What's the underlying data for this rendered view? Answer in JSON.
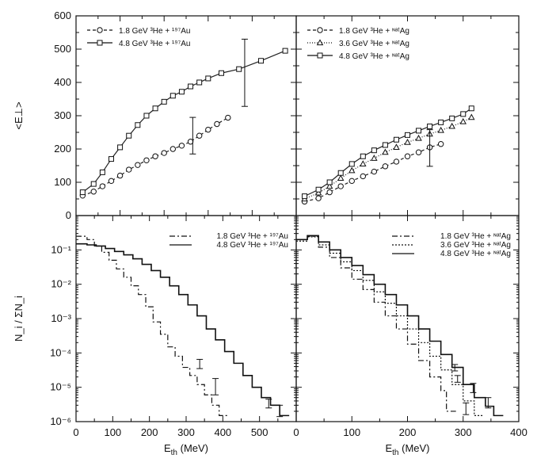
{
  "chart_data": [
    {
      "panel": "top-left",
      "type": "line",
      "ylabel": "<E⊥>",
      "xlim": [
        0,
        500
      ],
      "ylim": [
        0,
        600
      ],
      "yticks": [
        "0",
        "100",
        "200",
        "300",
        "400",
        "500",
        "600"
      ],
      "legend_position": "top-left",
      "series": [
        {
          "name": "1.8 GeV ³He + ¹⁹⁷Au",
          "marker": "circle",
          "dash": "4 3",
          "color": "#222222",
          "x": [
            15,
            40,
            60,
            80,
            100,
            120,
            140,
            160,
            180,
            200,
            220,
            240,
            260,
            280,
            300,
            320,
            345
          ],
          "y": [
            60,
            72,
            88,
            104,
            120,
            138,
            152,
            166,
            178,
            188,
            200,
            210,
            222,
            240,
            258,
            275,
            294
          ]
        },
        {
          "name": "4.8 GeV ³He + ¹⁹⁷Au",
          "marker": "square",
          "dash": "",
          "color": "#222222",
          "x": [
            15,
            40,
            60,
            80,
            100,
            120,
            140,
            160,
            180,
            200,
            220,
            240,
            260,
            280,
            300,
            330,
            370,
            420,
            475
          ],
          "y": [
            70,
            95,
            130,
            170,
            205,
            240,
            272,
            300,
            322,
            342,
            360,
            372,
            388,
            400,
            412,
            428,
            440,
            465,
            495
          ]
        }
      ],
      "errorbars": [
        {
          "x": 265,
          "y": 238,
          "low": 185,
          "high": 295
        },
        {
          "x": 383,
          "y": 430,
          "low": 328,
          "high": 530
        }
      ]
    },
    {
      "panel": "top-right",
      "type": "line",
      "xlim": [
        0,
        400
      ],
      "ylim": [
        0,
        600
      ],
      "legend_position": "top-left",
      "series": [
        {
          "name": "1.8 GeV ³He + ᶰᵃᵗAg",
          "marker": "circle",
          "dash": "4 3",
          "color": "#222222",
          "x": [
            15,
            40,
            60,
            80,
            100,
            120,
            140,
            160,
            180,
            200,
            220,
            240,
            260
          ],
          "y": [
            42,
            52,
            70,
            88,
            104,
            118,
            132,
            148,
            162,
            178,
            190,
            205,
            215
          ]
        },
        {
          "name": "3.6 GeV ³He + ᶰᵃᵗAg",
          "marker": "triangle",
          "dash": "1 2",
          "color": "#222222",
          "x": [
            15,
            40,
            60,
            80,
            100,
            120,
            140,
            160,
            180,
            200,
            220,
            240,
            260,
            280,
            300,
            315
          ],
          "y": [
            50,
            68,
            88,
            112,
            135,
            155,
            172,
            190,
            205,
            220,
            232,
            245,
            256,
            268,
            282,
            295
          ]
        },
        {
          "name": "4.8 GeV ³He + ᶰᵃᵗAg",
          "marker": "square",
          "dash": "",
          "color": "#222222",
          "x": [
            15,
            40,
            60,
            80,
            100,
            120,
            140,
            160,
            180,
            200,
            220,
            240,
            260,
            280,
            300,
            315
          ],
          "y": [
            58,
            78,
            100,
            128,
            155,
            178,
            196,
            212,
            228,
            242,
            255,
            268,
            280,
            292,
            305,
            322
          ]
        }
      ],
      "errorbars": [
        {
          "x": 240,
          "y": 220,
          "low": 148,
          "high": 258
        }
      ]
    },
    {
      "panel": "bottom-left",
      "type": "line",
      "xlabel": "E_th (MeV)",
      "ylabel": "N_i / ΣN_i",
      "xlim": [
        0,
        600
      ],
      "ylim_log10": [
        -6,
        0
      ],
      "xticks": [
        "0",
        "100",
        "200",
        "300",
        "400",
        "500"
      ],
      "legend_position": "top-right",
      "series": [
        {
          "name": "1.8 GeV ³He + ¹⁹⁷Au",
          "style": "step",
          "dash": "7 3 2 3",
          "color": "#111111",
          "x": [
            0,
            30,
            50,
            70,
            90,
            110,
            130,
            150,
            170,
            190,
            210,
            230,
            250,
            270,
            290,
            310,
            330,
            350,
            370,
            390
          ],
          "y": [
            0.25,
            0.2,
            0.13,
            0.085,
            0.05,
            0.028,
            0.016,
            0.009,
            0.005,
            0.0022,
            0.0008,
            0.00035,
            0.00015,
            8e-05,
            3.8e-05,
            2.2e-05,
            1.2e-05,
            6e-06,
            3e-06,
            1.5e-06
          ]
        },
        {
          "name": "4.8 GeV ³He + ¹⁹⁷Au",
          "style": "step",
          "dash": "",
          "color": "#111111",
          "x": [
            0,
            30,
            55,
            80,
            105,
            130,
            155,
            180,
            205,
            230,
            255,
            280,
            305,
            330,
            355,
            380,
            405,
            430,
            455,
            480,
            505,
            530,
            555
          ],
          "y": [
            0.15,
            0.14,
            0.13,
            0.11,
            0.09,
            0.072,
            0.055,
            0.038,
            0.025,
            0.016,
            0.009,
            0.005,
            0.0025,
            0.0012,
            0.0005,
            0.00024,
            0.00011,
            5e-05,
            2.2e-05,
            1e-05,
            5e-06,
            3e-06,
            1.5e-06
          ]
        }
      ],
      "errorbars": [
        {
          "x": 337,
          "y": 5e-05,
          "low": 3.5e-05,
          "high": 6.5e-05
        },
        {
          "x": 380,
          "y": 1.1e-05,
          "low": 6e-06,
          "high": 1.8e-05
        },
        {
          "x": 525,
          "y": 3.5e-06,
          "low": 2.5e-06,
          "high": 4.5e-06
        },
        {
          "x": 555,
          "y": 2.2e-06,
          "low": 1.4e-06,
          "high": 3e-06
        }
      ]
    },
    {
      "panel": "bottom-right",
      "type": "line",
      "xlabel": "E_th (MeV)",
      "xlim": [
        0,
        400
      ],
      "ylim_log10": [
        -6,
        0
      ],
      "xticks": [
        "0",
        "100",
        "200",
        "300",
        "400"
      ],
      "legend_position": "top-right",
      "series": [
        {
          "name": "1.8 GeV ³He + ᶰᵃᵗAg",
          "style": "step",
          "dash": "7 3 2 3",
          "color": "#111111",
          "x": [
            0,
            20,
            40,
            60,
            80,
            100,
            120,
            140,
            160,
            180,
            200,
            220,
            240,
            260,
            270
          ],
          "y": [
            0.2,
            0.25,
            0.12,
            0.06,
            0.03,
            0.014,
            0.007,
            0.003,
            0.0012,
            0.0005,
            0.00018,
            6e-05,
            2e-05,
            8e-06,
            2e-06
          ]
        },
        {
          "name": "3.6 GeV ³He + ᶰᵃᵗAg",
          "style": "step",
          "dash": "2 2",
          "color": "#111111",
          "x": [
            0,
            20,
            40,
            60,
            80,
            100,
            120,
            140,
            160,
            180,
            200,
            220,
            240,
            260,
            280,
            300,
            320
          ],
          "y": [
            0.18,
            0.24,
            0.14,
            0.08,
            0.045,
            0.025,
            0.013,
            0.006,
            0.0028,
            0.0012,
            0.0005,
            0.0002,
            8e-05,
            3.2e-05,
            1.2e-05,
            4e-06,
            1.5e-06
          ]
        },
        {
          "name": "4.8 GeV ³He + ᶰᵃᵗAg",
          "style": "step",
          "dash": "",
          "color": "#111111",
          "x": [
            0,
            20,
            40,
            60,
            80,
            100,
            120,
            140,
            160,
            180,
            200,
            220,
            240,
            260,
            280,
            300,
            320,
            340,
            355
          ],
          "y": [
            0.2,
            0.26,
            0.17,
            0.1,
            0.06,
            0.035,
            0.019,
            0.01,
            0.005,
            0.0025,
            0.0012,
            0.0005,
            0.00022,
            9e-05,
            3.8e-05,
            1.2e-05,
            5e-06,
            2.8e-06,
            1.5e-06
          ]
        }
      ],
      "errorbars": [
        {
          "x": 285,
          "y": 3.8e-05,
          "low": 3e-05,
          "high": 4.6e-05
        },
        {
          "x": 318,
          "y": 1e-05,
          "low": 7e-06,
          "high": 1.3e-05
        },
        {
          "x": 345,
          "y": 3.5e-06,
          "low": 2.5e-06,
          "high": 5e-06
        },
        {
          "x": 290,
          "y": 1.8e-05,
          "low": 1.4e-05,
          "high": 2.2e-05
        },
        {
          "x": 305,
          "y": 2.5e-06,
          "low": 1.6e-06,
          "high": 3.5e-06
        }
      ]
    }
  ],
  "shared_axis": {
    "ylabel_log_ticks": [
      "10⁻⁶",
      "10⁻⁵",
      "10⁻⁴",
      "10⁻³",
      "10⁻²",
      "10⁻¹"
    ]
  }
}
